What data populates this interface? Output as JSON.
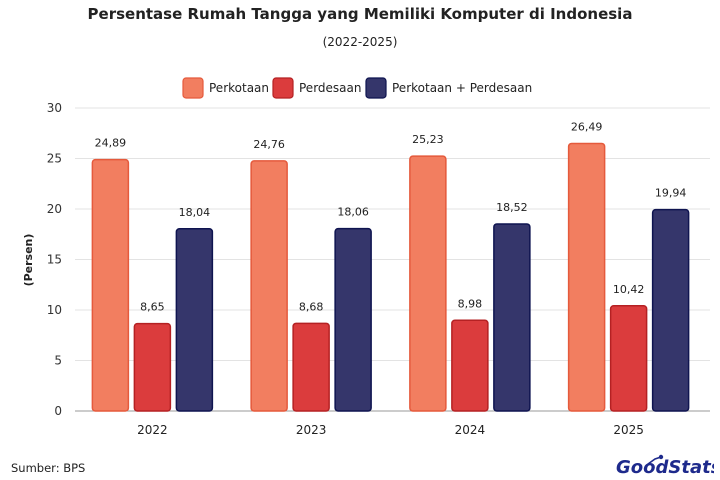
{
  "chart_data": {
    "type": "bar",
    "title": "Persentase Rumah Tangga yang Memiliki Komputer di Indonesia",
    "subtitle": "(2022-2025)",
    "ylabel": "(Persen)",
    "xlabel": "",
    "ylim": [
      0,
      30
    ],
    "yticks": [
      0,
      5,
      10,
      15,
      20,
      25,
      30
    ],
    "categories": [
      "2022",
      "2023",
      "2024",
      "2025"
    ],
    "series": [
      {
        "name": "Perkotaan",
        "values": [
          24.89,
          24.76,
          25.23,
          26.49
        ],
        "labels": [
          "24,89",
          "24,76",
          "25,23",
          "26,49"
        ],
        "color": "#f27e60",
        "stroke": "#e55a3c"
      },
      {
        "name": "Perdesaan",
        "values": [
          8.65,
          8.68,
          8.98,
          10.42
        ],
        "labels": [
          "8,65",
          "8,68",
          "8,98",
          "10,42"
        ],
        "color": "#db3c3d",
        "stroke": "#b52123"
      },
      {
        "name": "Perkotaan + Perdesaan",
        "values": [
          18.04,
          18.06,
          18.52,
          19.94
        ],
        "labels": [
          "18,04",
          "18,06",
          "18,52",
          "19,94"
        ],
        "color": "#35366b",
        "stroke": "#0f1450"
      }
    ],
    "grid": true,
    "legend_position": "top"
  },
  "footer": {
    "source": "Sumber: BPS",
    "logo_text": "GoodStats",
    "logo_color": "#1e2a8c"
  }
}
